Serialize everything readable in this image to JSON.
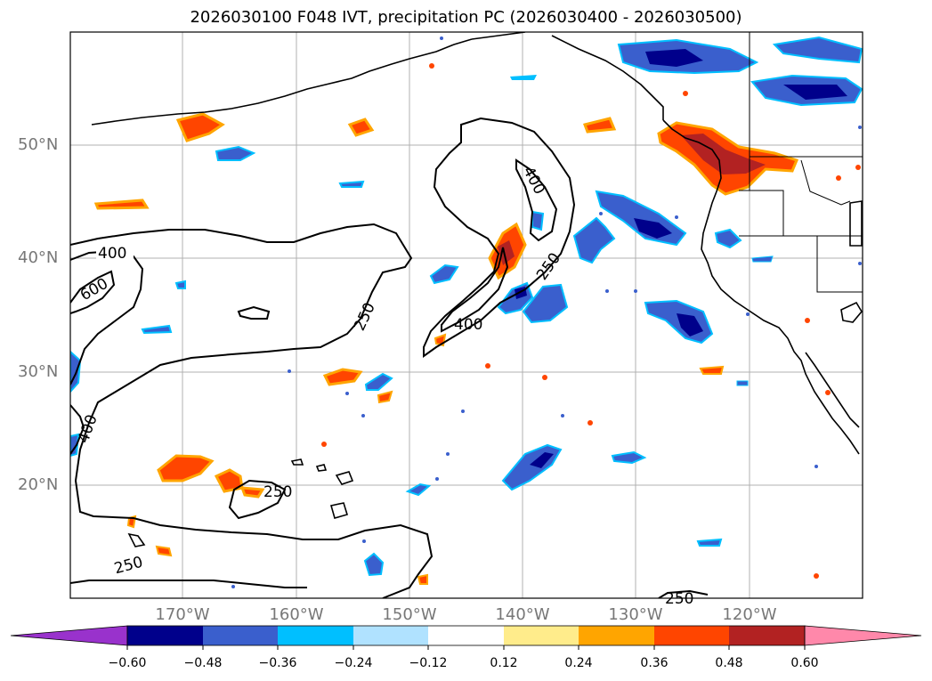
{
  "title": "2026030100 F048 IVT, precipitation PC (2026030400 - 2026030500)",
  "latitudes": [
    "50°N",
    "40°N",
    "30°N",
    "20°N"
  ],
  "longitudes": [
    "170°W",
    "160°W",
    "150°W",
    "140°W",
    "130°W",
    "120°W"
  ],
  "contour_labels": [
    "400",
    "600",
    "250",
    "400",
    "400",
    "250",
    "400",
    "250",
    "250",
    "250"
  ],
  "colorbar": {
    "ticks": [
      "−0.60",
      "−0.48",
      "−0.36",
      "−0.24",
      "−0.12",
      "0.12",
      "0.24",
      "0.36",
      "0.48",
      "0.60"
    ],
    "colors": [
      "#9932cc",
      "#00008b",
      "#3a5fcd",
      "#00bfff",
      "#b0e2ff",
      "#ffffff",
      "#ffec8b",
      "#ffa500",
      "#ff4500",
      "#b22222",
      "#ff88aa"
    ]
  }
}
